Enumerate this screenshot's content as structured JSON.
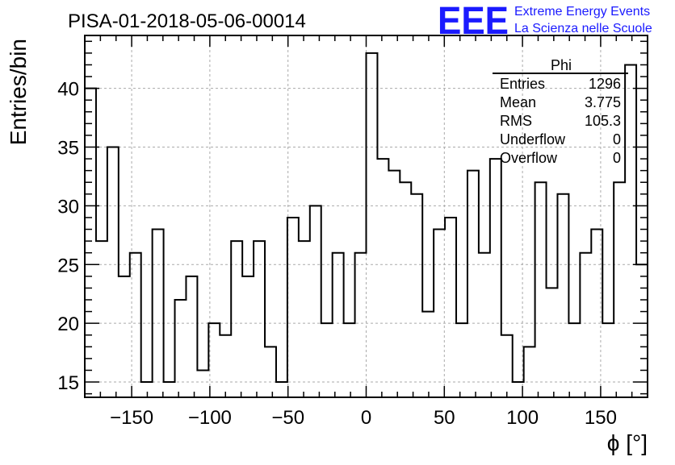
{
  "chart_data": {
    "type": "histogram",
    "title": "PISA-01-2018-05-06-00014",
    "ylabel": "Entries/bin",
    "xlabel": "ϕ [°]",
    "xlim": [
      -180,
      180
    ],
    "ylim": [
      13.7,
      44.5
    ],
    "bin_width": 7.2,
    "grid": true,
    "x_ticks": [
      -150,
      -100,
      -50,
      0,
      50,
      100,
      150
    ],
    "y_ticks": [
      15,
      20,
      25,
      30,
      35,
      40
    ],
    "x_tick_labels": [
      "−150",
      "−100",
      "−50",
      "0",
      "50",
      "100",
      "150"
    ],
    "y_tick_labels": [
      "15",
      "20",
      "25",
      "30",
      "35",
      "40"
    ],
    "values": [
      40,
      27,
      35,
      24,
      26,
      15,
      28,
      15,
      22,
      24,
      16,
      20,
      19,
      27,
      24,
      27,
      18,
      15,
      29,
      27,
      30,
      20,
      26,
      20,
      26,
      43,
      34,
      33,
      32,
      31,
      21,
      28,
      29,
      20,
      33,
      26,
      34,
      19,
      15,
      18,
      32,
      23,
      31,
      20,
      26,
      28,
      20,
      32,
      42,
      25
    ],
    "line_color": "#000000"
  },
  "stats_box": {
    "name": "Phi",
    "rows": [
      {
        "label": "Entries",
        "value": "1296"
      },
      {
        "label": "Mean",
        "value": "3.775"
      },
      {
        "label": "RMS",
        "value": "105.3"
      },
      {
        "label": "Underflow",
        "value": "0"
      },
      {
        "label": "Overflow",
        "value": "0"
      }
    ]
  },
  "logo": {
    "mark": "EEE",
    "line1": "Extreme Energy Events",
    "line2": "La Scienza nelle Scuole",
    "color": "#1a1aff"
  }
}
